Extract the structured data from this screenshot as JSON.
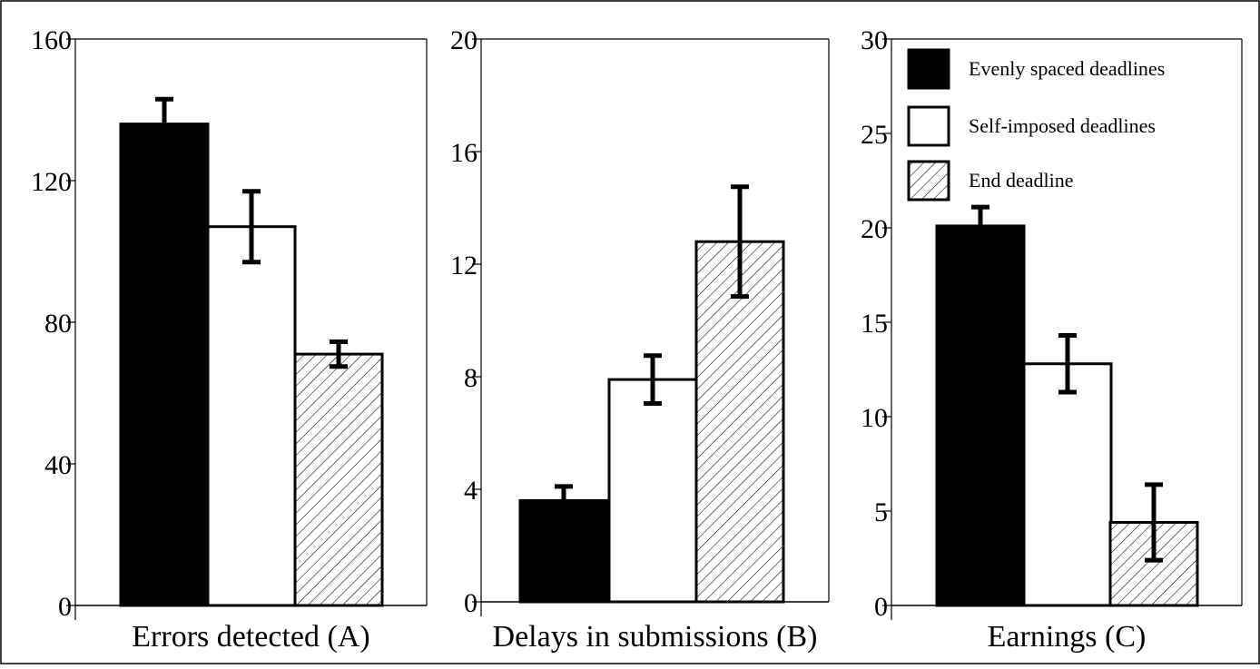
{
  "colors": {
    "evenly": "#000000",
    "self": "#ffffff",
    "end_hatch": "#000000",
    "frame": "#000000"
  },
  "legend": {
    "placement": "top-right",
    "panel": 2,
    "entries": [
      {
        "label": "Evenly spaced deadlines",
        "fill": "solid-black"
      },
      {
        "label": "Self-imposed deadlines",
        "fill": "white"
      },
      {
        "label": "End deadline",
        "fill": "hatched"
      }
    ]
  },
  "chart_data": [
    {
      "type": "bar",
      "xlabel": "Errors detected (A)",
      "ylabel": "",
      "ylim": [
        0,
        160
      ],
      "yticks": [
        0,
        40,
        80,
        120,
        160
      ],
      "grid": false,
      "series": [
        {
          "name": "Evenly spaced deadlines",
          "value": 136,
          "error": 7
        },
        {
          "name": "Self-imposed deadlines",
          "value": 107,
          "error": 10
        },
        {
          "name": "End deadline",
          "value": 71,
          "error": 3.5
        }
      ]
    },
    {
      "type": "bar",
      "xlabel": "Delays in submissions (B)",
      "ylabel": "",
      "ylim": [
        0,
        20
      ],
      "yticks": [
        0,
        4,
        8,
        12,
        16,
        20
      ],
      "grid": false,
      "series": [
        {
          "name": "Evenly spaced deadlines",
          "value": 3.6,
          "error": 0.5
        },
        {
          "name": "Self-imposed deadlines",
          "value": 7.9,
          "error": 0.85
        },
        {
          "name": "End deadline",
          "value": 12.8,
          "error": 1.95
        }
      ]
    },
    {
      "type": "bar",
      "xlabel": "Earnings (C)",
      "ylabel": "",
      "ylim": [
        0,
        30
      ],
      "yticks": [
        0,
        5,
        10,
        15,
        20,
        25,
        30
      ],
      "grid": false,
      "series": [
        {
          "name": "Evenly spaced deadlines",
          "value": 20.1,
          "error": 1.0
        },
        {
          "name": "Self-imposed deadlines",
          "value": 12.8,
          "error": 1.5
        },
        {
          "name": "End deadline",
          "value": 4.4,
          "error": 2.0
        }
      ]
    }
  ]
}
